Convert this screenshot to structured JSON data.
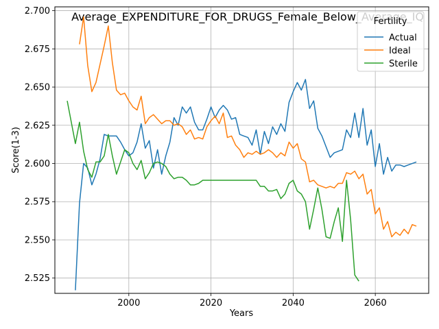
{
  "chart_data": {
    "type": "line",
    "title": "Average_EXPENDITURE_FOR_DRUGS_Female_Below_Average_IQ",
    "xlabel": "Years",
    "ylabel": "Score(1-3)",
    "xlim": [
      2082,
      2073
    ],
    "ylim": [
      2.515,
      2.7025
    ],
    "xticks": [
      2000,
      2020,
      2040,
      2060
    ],
    "yticks": [
      2.525,
      2.55,
      2.575,
      2.6,
      2.625,
      2.65,
      2.675,
      2.7
    ],
    "ytick_labels": [
      "2.525",
      "2.550",
      "2.575",
      "2.600",
      "2.625",
      "2.650",
      "2.675",
      "2.700"
    ],
    "grid": true,
    "legend": {
      "title": "Fertility",
      "placement": "top-right"
    },
    "series": [
      {
        "name": "Actual",
        "color": "#1f77b4",
        "points": [
          [
            1987,
            2.517
          ],
          [
            1988,
            2.574
          ],
          [
            1989,
            2.6
          ],
          [
            1990,
            2.597
          ],
          [
            1991,
            2.586
          ],
          [
            1992,
            2.593
          ],
          [
            1993,
            2.603
          ],
          [
            1994,
            2.619
          ],
          [
            1995,
            2.618
          ],
          [
            1996,
            2.618
          ],
          [
            1997,
            2.618
          ],
          [
            1998,
            2.614
          ],
          [
            1999,
            2.609
          ],
          [
            2000,
            2.605
          ],
          [
            2001,
            2.607
          ],
          [
            2002,
            2.614
          ],
          [
            2003,
            2.626
          ],
          [
            2004,
            2.61
          ],
          [
            2005,
            2.615
          ],
          [
            2006,
            2.597
          ],
          [
            2007,
            2.609
          ],
          [
            2008,
            2.593
          ],
          [
            2009,
            2.605
          ],
          [
            2010,
            2.614
          ],
          [
            2011,
            2.63
          ],
          [
            2012,
            2.625
          ],
          [
            2013,
            2.637
          ],
          [
            2014,
            2.633
          ],
          [
            2015,
            2.637
          ],
          [
            2016,
            2.627
          ],
          [
            2017,
            2.622
          ],
          [
            2018,
            2.622
          ],
          [
            2019,
            2.629
          ],
          [
            2020,
            2.637
          ],
          [
            2021,
            2.63
          ],
          [
            2022,
            2.635
          ],
          [
            2023,
            2.638
          ],
          [
            2024,
            2.635
          ],
          [
            2025,
            2.629
          ],
          [
            2026,
            2.63
          ],
          [
            2027,
            2.619
          ],
          [
            2028,
            2.618
          ],
          [
            2029,
            2.617
          ],
          [
            2030,
            2.612
          ],
          [
            2031,
            2.622
          ],
          [
            2032,
            2.606
          ],
          [
            2033,
            2.621
          ],
          [
            2034,
            2.613
          ],
          [
            2035,
            2.624
          ],
          [
            2036,
            2.619
          ],
          [
            2037,
            2.626
          ],
          [
            2038,
            2.621
          ],
          [
            2039,
            2.64
          ],
          [
            2040,
            2.647
          ],
          [
            2041,
            2.653
          ],
          [
            2042,
            2.648
          ],
          [
            2043,
            2.655
          ],
          [
            2044,
            2.636
          ],
          [
            2045,
            2.641
          ],
          [
            2046,
            2.623
          ],
          [
            2047,
            2.618
          ],
          [
            2048,
            2.611
          ],
          [
            2049,
            2.604
          ],
          [
            2050,
            2.607
          ],
          [
            2051,
            2.608
          ],
          [
            2052,
            2.609
          ],
          [
            2053,
            2.622
          ],
          [
            2054,
            2.617
          ],
          [
            2055,
            2.633
          ],
          [
            2056,
            2.617
          ],
          [
            2057,
            2.636
          ],
          [
            2058,
            2.612
          ],
          [
            2059,
            2.622
          ],
          [
            2060,
            2.598
          ],
          [
            2061,
            2.613
          ],
          [
            2062,
            2.593
          ],
          [
            2063,
            2.604
          ],
          [
            2064,
            2.595
          ],
          [
            2065,
            2.599
          ],
          [
            2066,
            2.599
          ],
          [
            2067,
            2.598
          ],
          [
            2068,
            2.599
          ],
          [
            2070,
            2.601
          ]
        ]
      },
      {
        "name": "Ideal",
        "color": "#ff7f0e",
        "points": [
          [
            1988,
            2.678
          ],
          [
            1989,
            2.696
          ],
          [
            1990,
            2.664
          ],
          [
            1991,
            2.647
          ],
          [
            1992,
            2.653
          ],
          [
            1993,
            2.665
          ],
          [
            1994,
            2.677
          ],
          [
            1995,
            2.69
          ],
          [
            1996,
            2.666
          ],
          [
            1997,
            2.648
          ],
          [
            1998,
            2.645
          ],
          [
            1999,
            2.646
          ],
          [
            2000,
            2.641
          ],
          [
            2001,
            2.637
          ],
          [
            2002,
            2.635
          ],
          [
            2003,
            2.644
          ],
          [
            2004,
            2.626
          ],
          [
            2005,
            2.63
          ],
          [
            2006,
            2.632
          ],
          [
            2007,
            2.629
          ],
          [
            2008,
            2.626
          ],
          [
            2009,
            2.628
          ],
          [
            2010,
            2.628
          ],
          [
            2011,
            2.625
          ],
          [
            2012,
            2.626
          ],
          [
            2013,
            2.624
          ],
          [
            2014,
            2.619
          ],
          [
            2015,
            2.622
          ],
          [
            2016,
            2.616
          ],
          [
            2017,
            2.617
          ],
          [
            2018,
            2.616
          ],
          [
            2019,
            2.624
          ],
          [
            2020,
            2.628
          ],
          [
            2021,
            2.631
          ],
          [
            2022,
            2.626
          ],
          [
            2023,
            2.633
          ],
          [
            2024,
            2.617
          ],
          [
            2025,
            2.618
          ],
          [
            2026,
            2.612
          ],
          [
            2027,
            2.609
          ],
          [
            2028,
            2.604
          ],
          [
            2029,
            2.607
          ],
          [
            2030,
            2.606
          ],
          [
            2031,
            2.608
          ],
          [
            2032,
            2.606
          ],
          [
            2033,
            2.607
          ],
          [
            2034,
            2.609
          ],
          [
            2035,
            2.607
          ],
          [
            2036,
            2.604
          ],
          [
            2037,
            2.607
          ],
          [
            2038,
            2.605
          ],
          [
            2039,
            2.614
          ],
          [
            2040,
            2.61
          ],
          [
            2041,
            2.613
          ],
          [
            2042,
            2.603
          ],
          [
            2043,
            2.601
          ],
          [
            2044,
            2.588
          ],
          [
            2045,
            2.589
          ],
          [
            2046,
            2.586
          ],
          [
            2047,
            2.585
          ],
          [
            2048,
            2.584
          ],
          [
            2049,
            2.585
          ],
          [
            2050,
            2.584
          ],
          [
            2051,
            2.587
          ],
          [
            2052,
            2.587
          ],
          [
            2053,
            2.594
          ],
          [
            2054,
            2.593
          ],
          [
            2055,
            2.595
          ],
          [
            2056,
            2.59
          ],
          [
            2057,
            2.593
          ],
          [
            2058,
            2.58
          ],
          [
            2059,
            2.583
          ],
          [
            2060,
            2.567
          ],
          [
            2061,
            2.571
          ],
          [
            2062,
            2.557
          ],
          [
            2063,
            2.562
          ],
          [
            2064,
            2.552
          ],
          [
            2065,
            2.555
          ],
          [
            2066,
            2.553
          ],
          [
            2067,
            2.557
          ],
          [
            2068,
            2.554
          ],
          [
            2069,
            2.56
          ],
          [
            2070,
            2.559
          ]
        ]
      },
      {
        "name": "Sterile",
        "color": "#2ca02c",
        "points": [
          [
            1985,
            2.641
          ],
          [
            1987,
            2.613
          ],
          [
            1988,
            2.627
          ],
          [
            1989,
            2.608
          ],
          [
            1990,
            2.596
          ],
          [
            1991,
            2.591
          ],
          [
            1992,
            2.601
          ],
          [
            1993,
            2.601
          ],
          [
            1994,
            2.605
          ],
          [
            1995,
            2.619
          ],
          [
            1996,
            2.605
          ],
          [
            1997,
            2.593
          ],
          [
            1998,
            2.601
          ],
          [
            1999,
            2.609
          ],
          [
            2000,
            2.607
          ],
          [
            2001,
            2.6
          ],
          [
            2002,
            2.596
          ],
          [
            2003,
            2.602
          ],
          [
            2004,
            2.59
          ],
          [
            2005,
            2.594
          ],
          [
            2006,
            2.6
          ],
          [
            2007,
            2.601
          ],
          [
            2008,
            2.6
          ],
          [
            2009,
            2.598
          ],
          [
            2010,
            2.593
          ],
          [
            2011,
            2.59
          ],
          [
            2012,
            2.591
          ],
          [
            2013,
            2.591
          ],
          [
            2014,
            2.589
          ],
          [
            2015,
            2.586
          ],
          [
            2016,
            2.586
          ],
          [
            2017,
            2.587
          ],
          [
            2018,
            2.589
          ],
          [
            2019,
            2.589
          ],
          [
            2020,
            2.589
          ],
          [
            2021,
            2.589
          ],
          [
            2022,
            2.589
          ],
          [
            2023,
            2.589
          ],
          [
            2024,
            2.589
          ],
          [
            2025,
            2.589
          ],
          [
            2026,
            2.589
          ],
          [
            2027,
            2.589
          ],
          [
            2028,
            2.589
          ],
          [
            2029,
            2.589
          ],
          [
            2030,
            2.589
          ],
          [
            2031,
            2.589
          ],
          [
            2032,
            2.585
          ],
          [
            2033,
            2.585
          ],
          [
            2034,
            2.582
          ],
          [
            2035,
            2.582
          ],
          [
            2036,
            2.583
          ],
          [
            2037,
            2.577
          ],
          [
            2038,
            2.58
          ],
          [
            2039,
            2.587
          ],
          [
            2040,
            2.589
          ],
          [
            2041,
            2.582
          ],
          [
            2042,
            2.58
          ],
          [
            2043,
            2.575
          ],
          [
            2044,
            2.557
          ],
          [
            2045,
            2.57
          ],
          [
            2046,
            2.584
          ],
          [
            2047,
            2.57
          ],
          [
            2048,
            2.552
          ],
          [
            2049,
            2.551
          ],
          [
            2050,
            2.562
          ],
          [
            2051,
            2.571
          ],
          [
            2052,
            2.549
          ],
          [
            2053,
            2.589
          ],
          [
            2054,
            2.563
          ],
          [
            2055,
            2.527
          ],
          [
            2056,
            2.523
          ]
        ]
      }
    ]
  }
}
